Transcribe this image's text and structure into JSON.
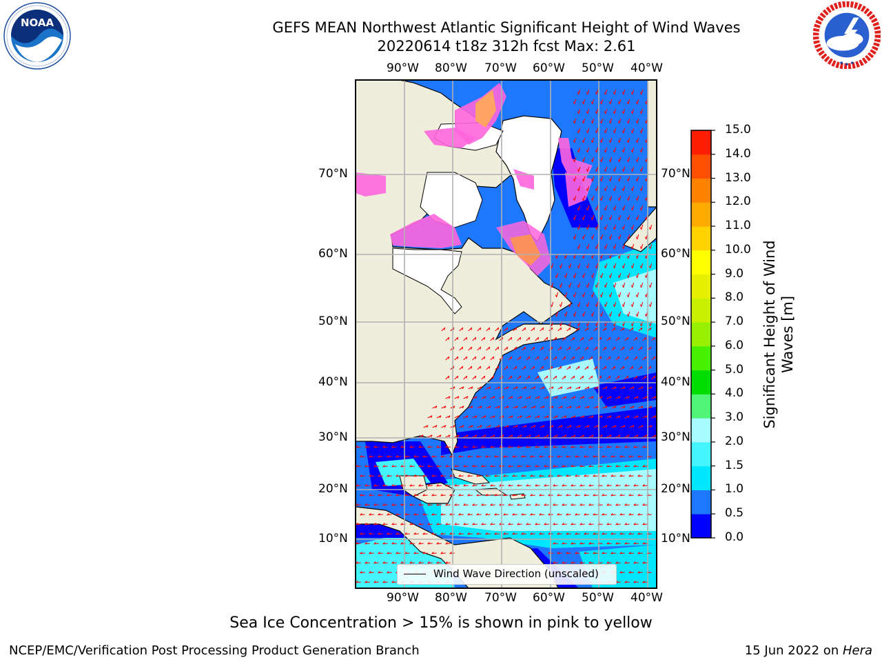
{
  "header": {
    "title_line1": "GEFS MEAN Northwest Atlantic Significant Height of Wind Waves",
    "title_line2": "20220614 t18z 312h fcst   Max: 2.61"
  },
  "logos": {
    "noaa": {
      "text": "NOAA",
      "ring_text": "NATIONAL OCEANIC AND ATMOSPHERIC ADMINISTRATION · U.S. DEPARTMENT OF COMMERCE"
    },
    "nws": {
      "ring_text": "NATIONAL WEATHER SERVICE"
    }
  },
  "map": {
    "lon_labels": [
      "90°W",
      "80°W",
      "70°W",
      "60°W",
      "50°W",
      "40°W"
    ],
    "lat_labels": [
      "70°N",
      "60°N",
      "50°N",
      "40°N",
      "30°N",
      "20°N",
      "10°N"
    ],
    "legend": {
      "label": "Wind Wave Direction (unscaled)",
      "line_color": "#000000"
    },
    "land_color": "#efeddc",
    "arrow_color": "#ff0000"
  },
  "colorbar": {
    "label": "Significant Height of Wind Waves [m]",
    "label_line1": "Significant Height of Wind",
    "label_line2": "Waves [m]",
    "ticks": [
      "0.0",
      "0.5",
      "1.0",
      "1.5",
      "2.0",
      "3.0",
      "4.0",
      "5.0",
      "6.0",
      "7.0",
      "8.0",
      "9.0",
      "10.0",
      "11.0",
      "12.0",
      "13.0",
      "14.0",
      "15.0"
    ],
    "colors": [
      "#0000ff",
      "#1e78ff",
      "#00e6ff",
      "#44f5ff",
      "#a8fcff",
      "#50f578",
      "#00dc00",
      "#46f000",
      "#96f000",
      "#c8f000",
      "#e6f000",
      "#ffff00",
      "#ffd200",
      "#ffaa00",
      "#ff8200",
      "#ff5000",
      "#ff1e00"
    ]
  },
  "footer": {
    "note": "Sea Ice Concentration > 15% is shown in pink to yellow",
    "branch": "NCEP/EMC/Verification Post Processing Product Generation Branch",
    "date": "15 Jun 2022 on ",
    "host": "Hera"
  }
}
